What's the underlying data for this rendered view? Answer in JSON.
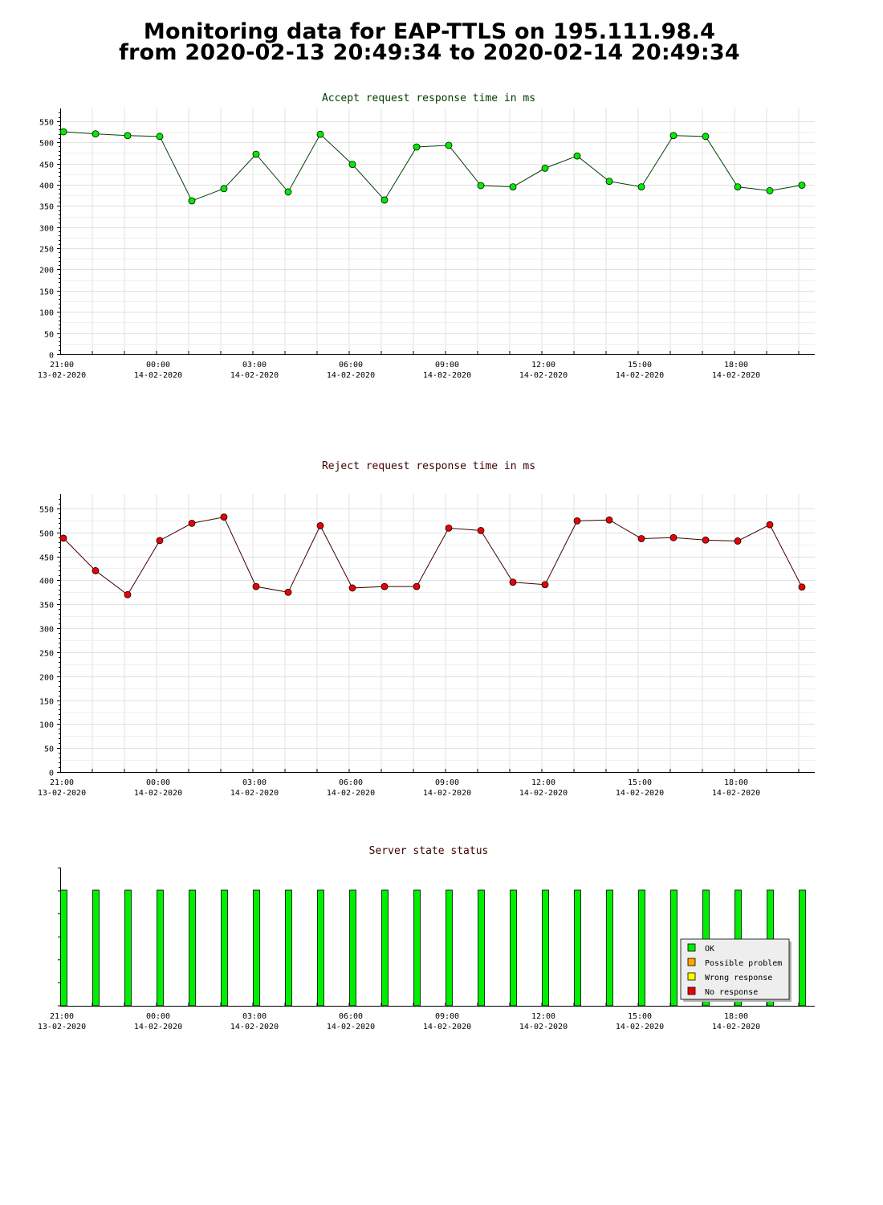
{
  "page": {
    "title_line1": "Monitoring data for EAP-TTLS on 195.111.98.4",
    "title_line2": "from 2020-02-13 20:49:34 to 2020-02-14 20:49:34"
  },
  "x_ticks": [
    {
      "time": "21:00",
      "date": "13-02-2020"
    },
    {
      "time": "00:00",
      "date": "14-02-2020"
    },
    {
      "time": "03:00",
      "date": "14-02-2020"
    },
    {
      "time": "06:00",
      "date": "14-02-2020"
    },
    {
      "time": "09:00",
      "date": "14-02-2020"
    },
    {
      "time": "12:00",
      "date": "14-02-2020"
    },
    {
      "time": "15:00",
      "date": "14-02-2020"
    },
    {
      "time": "18:00",
      "date": "14-02-2020"
    }
  ],
  "chart_data": [
    {
      "type": "line",
      "title": "Accept request response time in ms",
      "title_color": "#004000",
      "line_color": "#004000",
      "marker_color": "#00ee00",
      "x": [
        "2020-02-13 21:00",
        "2020-02-13 22:00",
        "2020-02-13 23:00",
        "2020-02-14 00:00",
        "2020-02-14 01:00",
        "2020-02-14 02:00",
        "2020-02-14 03:00",
        "2020-02-14 04:00",
        "2020-02-14 05:00",
        "2020-02-14 06:00",
        "2020-02-14 07:00",
        "2020-02-14 08:00",
        "2020-02-14 09:00",
        "2020-02-14 10:00",
        "2020-02-14 11:00",
        "2020-02-14 12:00",
        "2020-02-14 13:00",
        "2020-02-14 14:00",
        "2020-02-14 15:00",
        "2020-02-14 16:00",
        "2020-02-14 17:00",
        "2020-02-14 18:00",
        "2020-02-14 19:00",
        "2020-02-14 20:00"
      ],
      "values": [
        525,
        520,
        516,
        514,
        362,
        391,
        472,
        383,
        519,
        448,
        364,
        489,
        493,
        398,
        395,
        439,
        468,
        408,
        395,
        516,
        514,
        395,
        386,
        399
      ],
      "ylim": [
        0,
        580
      ],
      "yticks": [
        0,
        50,
        100,
        150,
        200,
        250,
        300,
        350,
        400,
        450,
        500,
        550
      ],
      "grid": true
    },
    {
      "type": "line",
      "title": "Reject request response time in ms",
      "title_color": "#400000",
      "line_color": "#400000",
      "marker_color": "#ee0000",
      "x": [
        "2020-02-13 21:00",
        "2020-02-13 22:00",
        "2020-02-13 23:00",
        "2020-02-14 00:00",
        "2020-02-14 01:00",
        "2020-02-14 02:00",
        "2020-02-14 03:00",
        "2020-02-14 04:00",
        "2020-02-14 05:00",
        "2020-02-14 06:00",
        "2020-02-14 07:00",
        "2020-02-14 08:00",
        "2020-02-14 09:00",
        "2020-02-14 10:00",
        "2020-02-14 11:00",
        "2020-02-14 12:00",
        "2020-02-14 13:00",
        "2020-02-14 14:00",
        "2020-02-14 15:00",
        "2020-02-14 16:00",
        "2020-02-14 17:00",
        "2020-02-14 18:00",
        "2020-02-14 19:00",
        "2020-02-14 20:00"
      ],
      "values": [
        488,
        420,
        370,
        483,
        519,
        532,
        387,
        375,
        514,
        384,
        387,
        387,
        509,
        504,
        396,
        391,
        524,
        526,
        487,
        489,
        484,
        482,
        516,
        386
      ],
      "ylim": [
        0,
        580
      ],
      "yticks": [
        0,
        50,
        100,
        150,
        200,
        250,
        300,
        350,
        400,
        450,
        500,
        550
      ],
      "grid": true
    },
    {
      "type": "bar",
      "title": "Server state status",
      "title_color": "#400000",
      "x": [
        "2020-02-13 21:00",
        "2020-02-13 22:00",
        "2020-02-13 23:00",
        "2020-02-14 00:00",
        "2020-02-14 01:00",
        "2020-02-14 02:00",
        "2020-02-14 03:00",
        "2020-02-14 04:00",
        "2020-02-14 05:00",
        "2020-02-14 06:00",
        "2020-02-14 07:00",
        "2020-02-14 08:00",
        "2020-02-14 09:00",
        "2020-02-14 10:00",
        "2020-02-14 11:00",
        "2020-02-14 12:00",
        "2020-02-14 13:00",
        "2020-02-14 14:00",
        "2020-02-14 15:00",
        "2020-02-14 16:00",
        "2020-02-14 17:00",
        "2020-02-14 18:00",
        "2020-02-14 19:00",
        "2020-02-14 20:00"
      ],
      "states": [
        "OK",
        "OK",
        "OK",
        "OK",
        "OK",
        "OK",
        "OK",
        "OK",
        "OK",
        "OK",
        "OK",
        "OK",
        "OK",
        "OK",
        "OK",
        "OK",
        "OK",
        "OK",
        "OK",
        "OK",
        "OK",
        "OK",
        "OK",
        "OK"
      ],
      "legend": {
        "position": "bottom-right",
        "entries": [
          {
            "label": "OK",
            "color": "#00ee00"
          },
          {
            "label": "Possible problem",
            "color": "#ffa500"
          },
          {
            "label": "Wrong response",
            "color": "#ffff00"
          },
          {
            "label": "No response",
            "color": "#ee0000"
          }
        ]
      }
    }
  ]
}
